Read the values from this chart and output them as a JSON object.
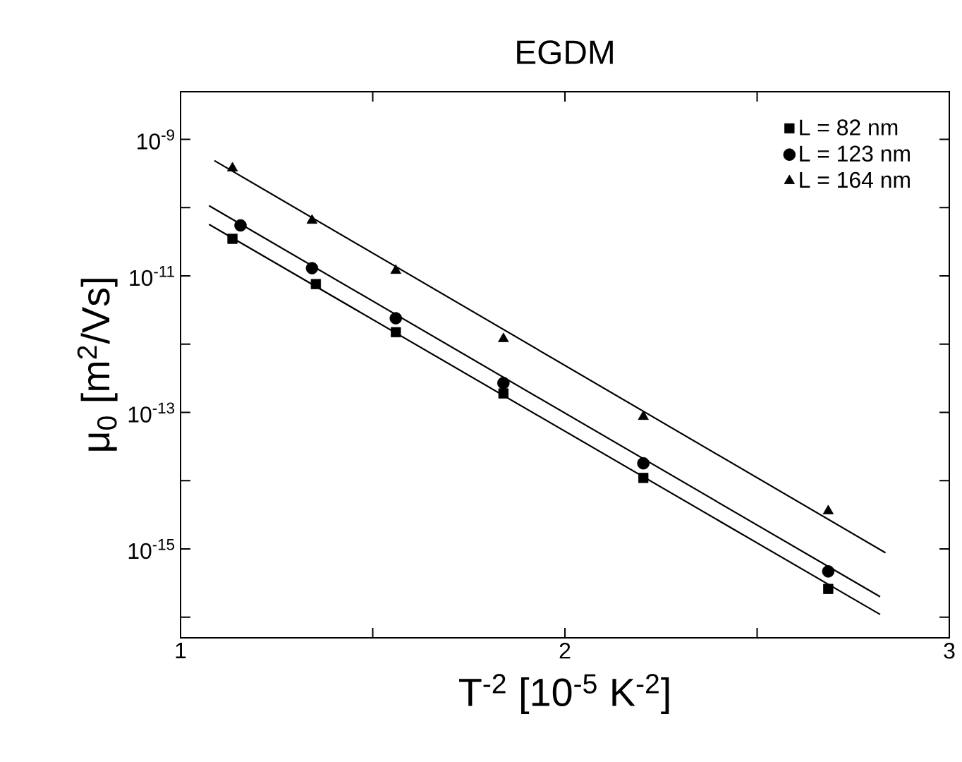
{
  "chart_data": {
    "type": "scatter",
    "title": "EGDM",
    "xlabel": "T$^{-2}$ [10$^{-5}$ K$^{-2}$]",
    "ylabel": "μ$_{0}$ [m$^{2}$/Vs]",
    "log": "y",
    "legend": "top right",
    "grid": false,
    "xlim": [
      1,
      3
    ],
    "xticks": [
      1,
      {
        "value": 1.5,
        "label": null
      },
      2,
      {
        "value": 2.5,
        "label": null
      },
      3
    ],
    "ylim": [
      5e-17,
      5e-09
    ],
    "yticks": [
      {
        "value": 1e-09,
        "label": "10$^{-9}$"
      },
      {
        "value": 1e-10,
        "label": null
      },
      {
        "value": 1e-11,
        "label": "10$^{-11}$"
      },
      {
        "value": 1e-12,
        "label": null
      },
      {
        "value": 1e-13,
        "label": "10$^{-13}$"
      },
      {
        "value": 1e-14,
        "label": null
      },
      {
        "value": 1e-15,
        "label": "10$^{-15}$"
      },
      {
        "value": 1e-16,
        "label": null
      }
    ],
    "series": [
      {
        "name": "L = 82 nm",
        "color": "#000000",
        "marker": "square",
        "x": [
          1.135,
          1.352,
          1.56,
          1.84,
          2.204,
          2.685
        ],
        "values": [
          3.5e-11,
          7.6e-12,
          1.5e-12,
          1.9e-13,
          1.1e-14,
          2.6e-16
        ]
      },
      {
        "name": "L = 123 nm",
        "color": "#000000",
        "marker": "circle",
        "x": [
          1.156,
          1.342,
          1.56,
          1.84,
          2.204,
          2.685
        ],
        "values": [
          5.5e-11,
          1.3e-11,
          2.4e-12,
          2.7e-13,
          1.8e-14,
          4.7e-16
        ]
      },
      {
        "name": "L = 164 nm",
        "color": "#000000",
        "marker": "triangle",
        "x": [
          1.135,
          1.342,
          1.56,
          1.84,
          2.204,
          2.685
        ],
        "values": [
          3.8e-10,
          6.5e-11,
          1.2e-11,
          1.2e-12,
          8.7e-14,
          3.6e-15
        ]
      },
      {
        "type": "line",
        "color": "#000000",
        "marker": "none",
        "line_style": "solid",
        "x": [
          1.074,
          2.82
        ],
        "values": [
          5.7e-11,
          1.1e-16
        ]
      },
      {
        "type": "line",
        "color": "#000000",
        "marker": "none",
        "line_style": "solid",
        "x": [
          1.074,
          2.82
        ],
        "values": [
          1.07e-10,
          2e-16
        ]
      },
      {
        "type": "line",
        "color": "#000000",
        "marker": "none",
        "line_style": "solid",
        "x": [
          1.088,
          2.834
        ],
        "values": [
          4.9e-10,
          8.8e-16
        ]
      }
    ]
  }
}
